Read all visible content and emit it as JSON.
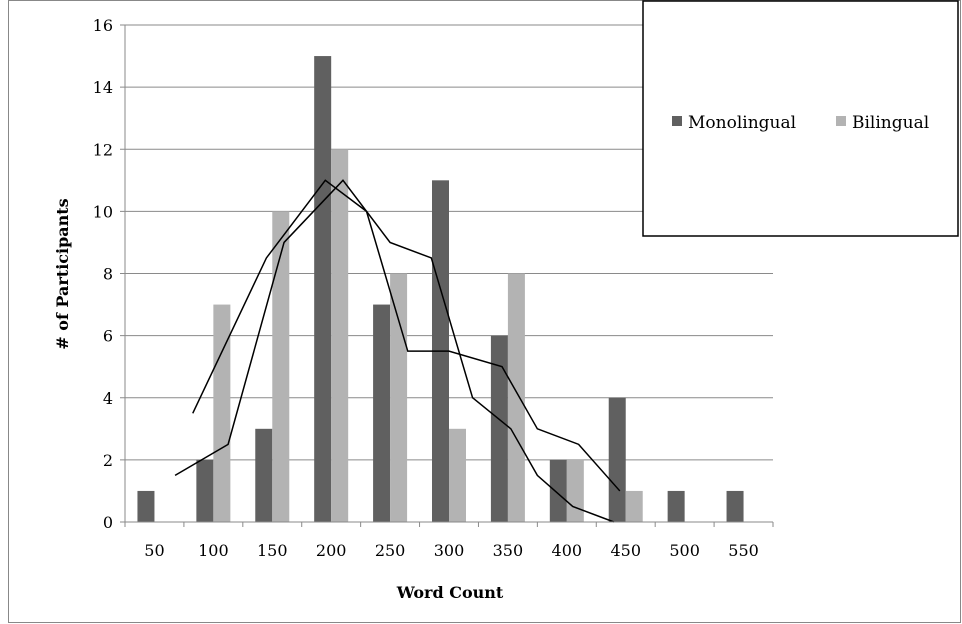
{
  "chart_data": {
    "type": "bar",
    "title": "",
    "xlabel": "Word Count",
    "ylabel": "# of Participants",
    "ylim": [
      0,
      16
    ],
    "yticks": [
      0,
      2,
      4,
      6,
      8,
      10,
      12,
      14,
      16
    ],
    "grid": true,
    "legend_position": "top-right",
    "categories": [
      "50",
      "100",
      "150",
      "200",
      "250",
      "300",
      "350",
      "400",
      "450",
      "500",
      "550"
    ],
    "series": [
      {
        "name": "Monolingual",
        "color": "#606060",
        "values": [
          1,
          2,
          3,
          15,
          7,
          11,
          6,
          2,
          4,
          1,
          1
        ]
      },
      {
        "name": "Bilingual",
        "color": "#b3b3b3",
        "values": [
          0,
          7,
          10,
          12,
          8,
          3,
          8,
          2,
          1,
          0,
          0
        ]
      }
    ],
    "trend_lines": [
      {
        "color": "#000000",
        "points": [
          {
            "x": 1.15,
            "y": 3.5
          },
          {
            "x": 2.4,
            "y": 8.5
          },
          {
            "x": 3.4,
            "y": 11
          },
          {
            "x": 4.1,
            "y": 10
          },
          {
            "x": 4.8,
            "y": 5.5
          },
          {
            "x": 5.5,
            "y": 5.5
          },
          {
            "x": 6.4,
            "y": 5
          },
          {
            "x": 7.0,
            "y": 3
          },
          {
            "x": 7.7,
            "y": 2.5
          },
          {
            "x": 8.4,
            "y": 1
          }
        ]
      },
      {
        "color": "#000000",
        "points": [
          {
            "x": 0.85,
            "y": 1.5
          },
          {
            "x": 1.75,
            "y": 2.5
          },
          {
            "x": 2.7,
            "y": 9
          },
          {
            "x": 3.7,
            "y": 11
          },
          {
            "x": 4.5,
            "y": 9
          },
          {
            "x": 5.2,
            "y": 8.5
          },
          {
            "x": 5.9,
            "y": 4
          },
          {
            "x": 6.55,
            "y": 3
          },
          {
            "x": 7.0,
            "y": 1.5
          },
          {
            "x": 7.6,
            "y": 0.5
          },
          {
            "x": 8.3,
            "y": 0
          }
        ]
      }
    ]
  }
}
